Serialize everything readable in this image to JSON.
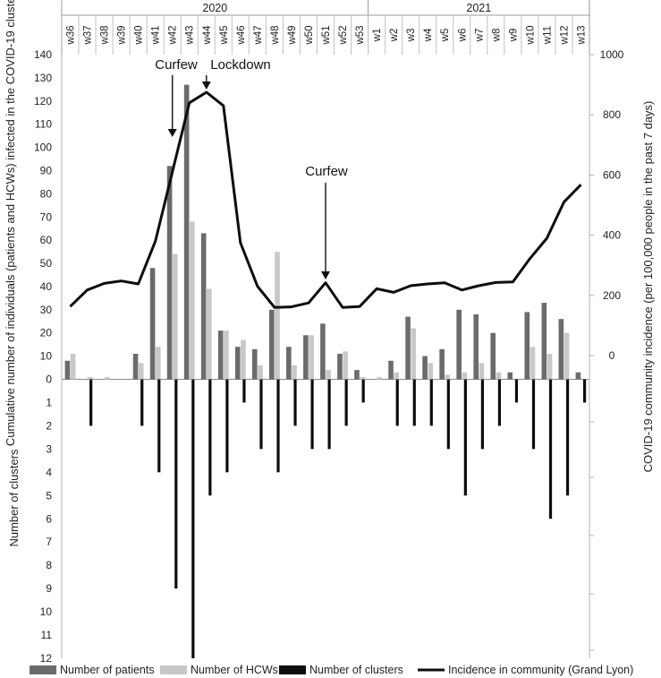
{
  "chart_data": {
    "type": "bar",
    "title": "",
    "years": [
      {
        "label": "2020",
        "weeks": 18
      },
      {
        "label": "2021",
        "weeks": 13
      }
    ],
    "categories": [
      "w36",
      "w37",
      "w38",
      "w39",
      "w40",
      "w41",
      "w42",
      "w43",
      "w44",
      "w45",
      "w46",
      "w47",
      "w48",
      "w49",
      "w50",
      "w51",
      "w52",
      "w53",
      "w1",
      "w2",
      "w3",
      "w4",
      "w5",
      "w6",
      "w7",
      "w8",
      "w9",
      "w10",
      "w11",
      "w12",
      "w13"
    ],
    "series": [
      {
        "name": "Number of patients",
        "color": "#6b6b6b",
        "values": [
          8,
          0,
          0,
          0,
          11,
          48,
          92,
          127,
          63,
          21,
          14,
          13,
          30,
          14,
          19,
          24,
          11,
          4,
          0,
          8,
          27,
          10,
          13,
          30,
          28,
          20,
          3,
          29,
          33,
          26,
          3
        ]
      },
      {
        "name": "Number of HCWs",
        "color": "#c8c8c8",
        "values": [
          11,
          1,
          1,
          0,
          7,
          14,
          54,
          68,
          39,
          21,
          17,
          6,
          55,
          6,
          19,
          4,
          12,
          1,
          1,
          3,
          22,
          7,
          2,
          3,
          7,
          3,
          0,
          14,
          11,
          20,
          0
        ]
      },
      {
        "name": "Number of clusters",
        "color": "#0d0d0d",
        "values": [
          0,
          2,
          0,
          0,
          2,
          4,
          9,
          12,
          5,
          4,
          1,
          3,
          4,
          2,
          3,
          3,
          2,
          1,
          0,
          2,
          2,
          2,
          3,
          5,
          3,
          2,
          1,
          3,
          6,
          5,
          1
        ]
      },
      {
        "name": "Incidence in community (Grand Lyon)",
        "color": "#0d0d0d",
        "values": [
          163,
          218,
          240,
          248,
          238,
          380,
          610,
          840,
          875,
          830,
          375,
          230,
          160,
          162,
          175,
          242,
          160,
          163,
          222,
          210,
          232,
          238,
          242,
          218,
          232,
          243,
          245,
          322,
          390,
          510,
          568
        ]
      }
    ],
    "ylabel_left": "Cumulative number of individuals (patients and HCWs) infected in the COVID-19 clusters",
    "ylabel_right": "COVID-19 community incidence (per 100,000 people in the past 7 days)",
    "ylabel_lower": "Number of clusters",
    "ylim_left": [
      0,
      140
    ],
    "ylim_right": [
      0,
      1000
    ],
    "ylim_lower": [
      0,
      12
    ],
    "yticks_left": [
      "0",
      "10",
      "20",
      "30",
      "40",
      "50",
      "60",
      "70",
      "80",
      "90",
      "100",
      "110",
      "120",
      "130",
      "140"
    ],
    "yticks_right": [
      "0",
      "200",
      "400",
      "600",
      "800",
      "1000"
    ],
    "yticks_lower": [
      "1",
      "2",
      "3",
      "4",
      "5",
      "6",
      "7",
      "8",
      "9",
      "10",
      "11",
      "12"
    ],
    "annotations": [
      {
        "text": "Curfew",
        "week": "w42"
      },
      {
        "text": "Lockdown",
        "week": "w44"
      },
      {
        "text": "Curfew",
        "week": "w51"
      }
    ],
    "legend_position": "bottom"
  }
}
